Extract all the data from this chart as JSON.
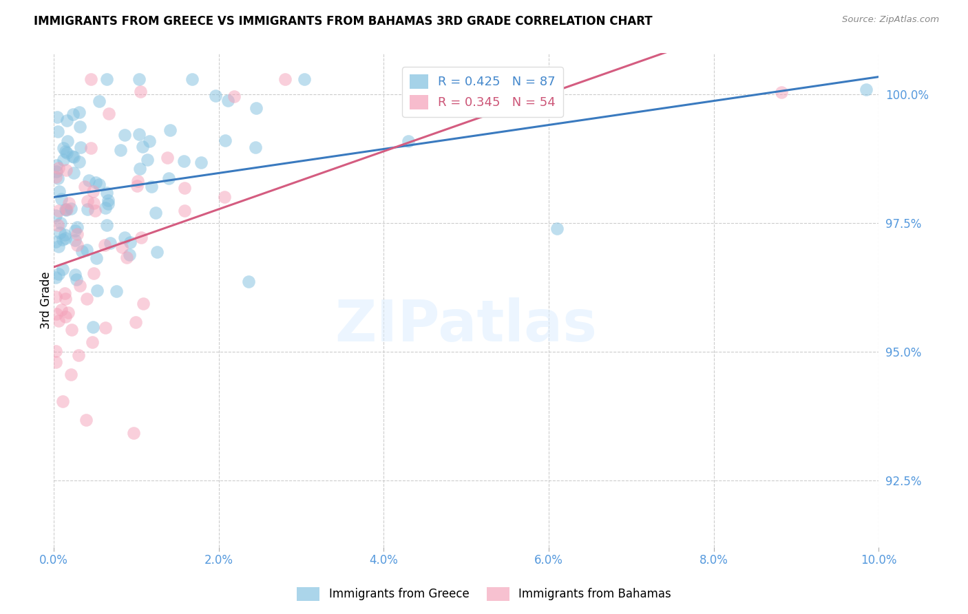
{
  "title": "IMMIGRANTS FROM GREECE VS IMMIGRANTS FROM BAHAMAS 3RD GRADE CORRELATION CHART",
  "source": "Source: ZipAtlas.com",
  "ylabel": "3rd Grade",
  "ylabel_vals": [
    92.5,
    95.0,
    97.5,
    100.0
  ],
  "xlabel_vals": [
    0.0,
    2.0,
    4.0,
    6.0,
    8.0,
    10.0
  ],
  "xlim": [
    0.0,
    10.0
  ],
  "ylim": [
    91.2,
    100.8
  ],
  "color_greece": "#7fbfdf",
  "color_bahamas": "#f4a0b8",
  "color_greece_line": "#3a7abf",
  "color_bahamas_line": "#d45c80",
  "color_axis": "#5599dd",
  "watermark_text": "ZIPatlas",
  "legend_text_greece": "R = 0.425   N = 87",
  "legend_text_bahamas": "R = 0.345   N = 54",
  "greece_R": 0.425,
  "greece_N": 87,
  "bahamas_R": 0.345,
  "bahamas_N": 54
}
